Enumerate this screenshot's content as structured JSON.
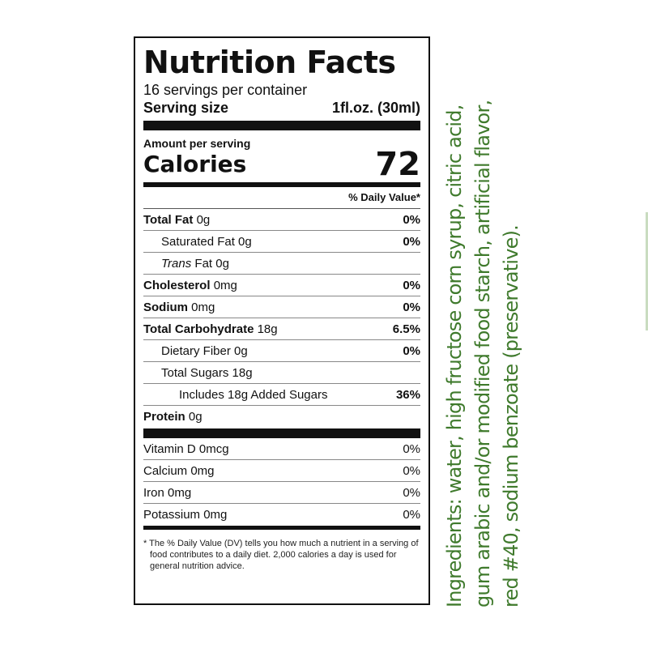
{
  "nutrition_label": {
    "title": "Nutrition Facts",
    "servings_per_container": "16 servings per container",
    "serving_size_label": "Serving size",
    "serving_size_value": "1fl.oz. (30ml)",
    "amount_per_serving": "Amount per serving",
    "calories_label": "Calories",
    "calories_value": "72",
    "daily_value_header": "% Daily Value*",
    "nutrients": {
      "total_fat": {
        "label": "Total Fat",
        "amount": "0g",
        "dv": "0%"
      },
      "saturated_fat": {
        "label": "Saturated Fat 0g",
        "dv": "0%"
      },
      "trans_fat": {
        "label_italic": "Trans",
        "label_rest": "Fat 0g"
      },
      "cholesterol": {
        "label": "Cholesterol",
        "amount": "0mg",
        "dv": "0%"
      },
      "sodium": {
        "label": "Sodium",
        "amount": "0mg",
        "dv": "0%"
      },
      "total_carbohydrate": {
        "label": "Total Carbohydrate",
        "amount": "18g",
        "dv": "6.5%"
      },
      "dietary_fiber": {
        "label": "Dietary Fiber 0g",
        "dv": "0%"
      },
      "total_sugars": {
        "label": "Total Sugars 18g"
      },
      "added_sugars": {
        "label": "Includes 18g Added Sugars",
        "dv": "36%"
      },
      "protein": {
        "label": "Protein",
        "amount": "0g"
      }
    },
    "vitamins": {
      "vitamin_d": {
        "label": "Vitamin D 0mcg",
        "dv": "0%"
      },
      "calcium": {
        "label": "Calcium 0mg",
        "dv": "0%"
      },
      "iron": {
        "label": "Iron 0mg",
        "dv": "0%"
      },
      "potassium": {
        "label": "Potassium 0mg",
        "dv": "0%"
      }
    },
    "footnote": "* The % Daily Value (DV) tells you how much a nutrient in a serving of food contributes to a daily diet. 2,000 calories a day is used for general nutrition advice."
  },
  "ingredients": {
    "line1": "Ingredients: water, high fructose corn syrup, citric acid,",
    "line2": "gum arabic and/or modified food starch, artificial flavor,",
    "line3": "red #40, sodium benzoate (preservative).",
    "color": "#3f7a2c"
  }
}
